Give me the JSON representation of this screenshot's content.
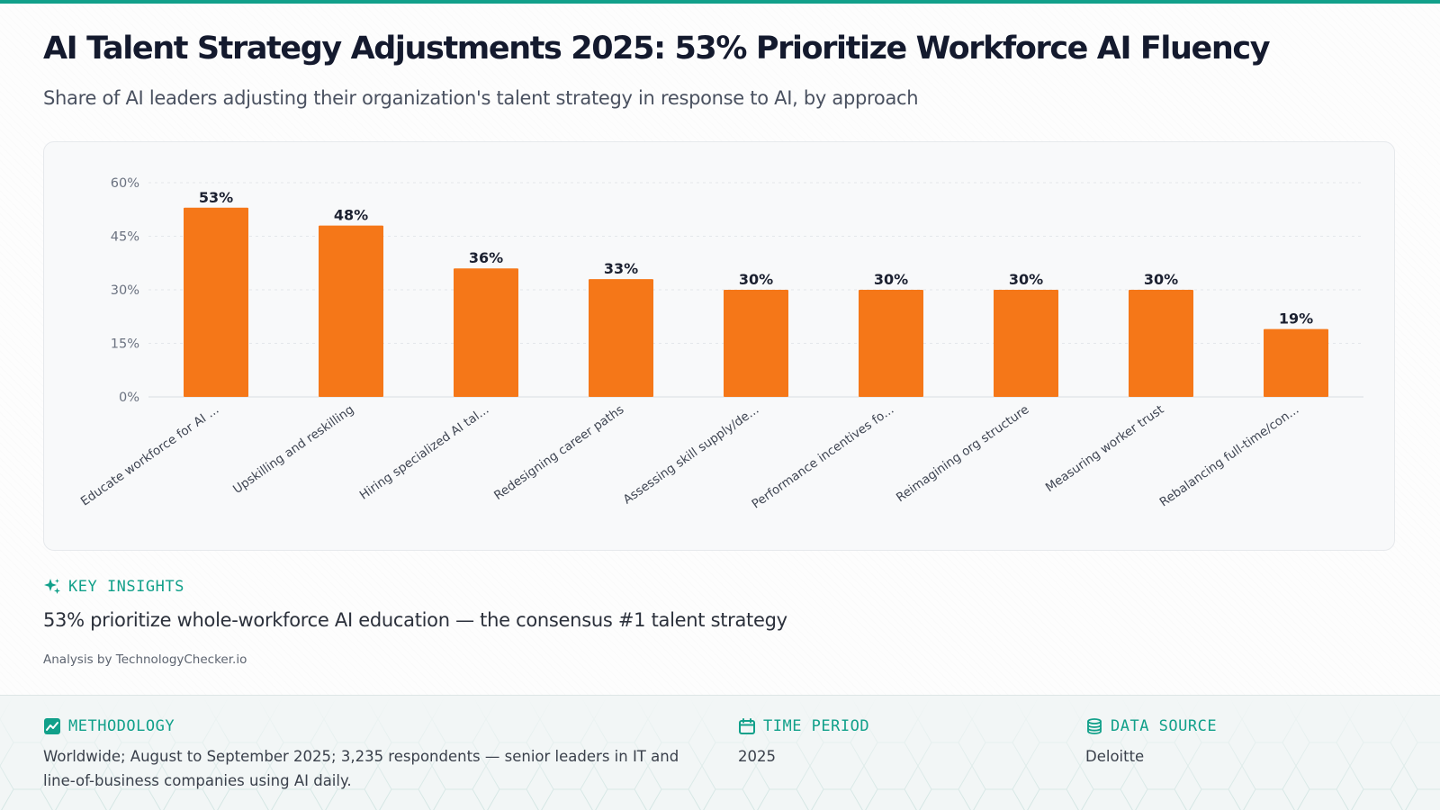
{
  "header": {
    "title": "AI Talent Strategy Adjustments 2025: 53% Prioritize Workforce AI Fluency",
    "subtitle": "Share of AI leaders adjusting their organization's talent strategy in response to AI, by approach"
  },
  "colors": {
    "accent": "#11a08a",
    "bar": "#f57718",
    "title": "#141a2e"
  },
  "chart_data": {
    "type": "bar",
    "categories": [
      "Educate workforce for AI ...",
      "Upskilling and reskilling",
      "Hiring specialized AI tal...",
      "Redesigning career paths",
      "Assessing skill supply/de...",
      "Performance incentives fo...",
      "Reimagining org structure",
      "Measuring worker trust",
      "Rebalancing full-time/con..."
    ],
    "values": [
      53,
      48,
      36,
      33,
      30,
      30,
      30,
      30,
      19
    ],
    "value_labels": [
      "53%",
      "48%",
      "36%",
      "33%",
      "30%",
      "30%",
      "30%",
      "30%",
      "19%"
    ],
    "yticks": [
      "0%",
      "15%",
      "30%",
      "45%",
      "60%"
    ],
    "ylim": [
      0,
      60
    ],
    "grid": true,
    "legend": "none"
  },
  "insights": {
    "label": "KEY INSIGHTS",
    "text": "53% prioritize whole-workforce AI education — the consensus #1 talent strategy",
    "attribution": "Analysis by TechnologyChecker.io"
  },
  "footer": {
    "methodology": {
      "label": "METHODOLOGY",
      "text": "Worldwide; August to September 2025; 3,235 respondents — senior leaders in IT and line-of-business companies using AI daily."
    },
    "time_period": {
      "label": "TIME PERIOD",
      "text": "2025"
    },
    "data_source": {
      "label": "DATA SOURCE",
      "text": "Deloitte"
    }
  }
}
